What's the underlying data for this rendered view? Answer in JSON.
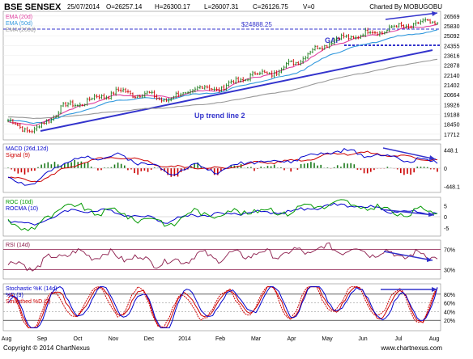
{
  "header": {
    "symbol": "BSE SENSEX",
    "date": "25/07/2014",
    "open": "O=26257.14",
    "high": "H=26300.17",
    "low": "L=26007.31",
    "close": "C=26126.75",
    "volume": "V=0",
    "credit": "Charted By MOBUGOBU"
  },
  "footer": {
    "copyright": "Copyright © 2014 ChartNexus",
    "url": "www.chartnexus.com"
  },
  "colors": {
    "price_up": "#1a7a1a",
    "price_down": "#cc0000",
    "ema20": "#e040a0",
    "ema50": "#3399dd",
    "ema200": "#999999",
    "trendline": "#3333cc",
    "macd": "#0000cc",
    "signal": "#cc0000",
    "roc": "#009900",
    "rocma": "#0000cc",
    "rsi": "#8b1a4a",
    "stoch_k": "#0000cc",
    "stoch_d": "#cc0000"
  },
  "chart_data": [
    {
      "type": "line",
      "panel": "price",
      "x_labels": [
        "Aug",
        "Sep",
        "Oct",
        "Nov",
        "Dec",
        "2014",
        "Feb",
        "Mar",
        "Apr",
        "May",
        "Jun",
        "Jul",
        "Aug"
      ],
      "series": [
        {
          "name": "BSE SENSEX",
          "values": [
            18600,
            17900,
            19700,
            20200,
            20900,
            20700,
            20300,
            21100,
            21200,
            22100,
            22400,
            23500,
            24700,
            25100,
            25500,
            25900,
            26127
          ]
        },
        {
          "name": "EMA (20d)",
          "values": [
            18700,
            18300,
            19300,
            20000,
            20600,
            20650,
            20450,
            20900,
            21050,
            21900,
            22300,
            23100,
            24300,
            24900,
            25300,
            25700,
            25900
          ]
        },
        {
          "name": "EMA (50d)",
          "values": [
            18800,
            18500,
            19000,
            19600,
            20200,
            20400,
            20350,
            20700,
            20900,
            21500,
            21900,
            22500,
            23700,
            24300,
            24800,
            25200,
            25450
          ]
        },
        {
          "name": "EMA (200d)",
          "values": [
            19000,
            18900,
            19000,
            19200,
            19400,
            19600,
            19700,
            19900,
            20100,
            20500,
            20800,
            21200,
            21800,
            22200,
            22600,
            23000,
            23300
          ]
        }
      ],
      "yticks": [
        "26569",
        "25830",
        "25092",
        "24355",
        "23616",
        "22878",
        "22140",
        "21402",
        "20664",
        "19926",
        "19188",
        "18450",
        "17712"
      ],
      "ylim": [
        17400,
        26800
      ],
      "annotations": [
        "$24888.25",
        "GAP",
        "Up trend line 2"
      ],
      "legend": [
        "EMA (20d)",
        "EMA (50d)",
        "EMA (200d)"
      ]
    },
    {
      "type": "line",
      "panel": "macd",
      "series": [
        {
          "name": "MACD (26d,12d)",
          "values": [
            -250,
            -400,
            120,
            280,
            300,
            150,
            -100,
            50,
            -80,
            200,
            150,
            250,
            420,
            380,
            300,
            200,
            180
          ]
        },
        {
          "name": "Signal (9)",
          "values": [
            -200,
            -350,
            -50,
            180,
            260,
            200,
            20,
            30,
            -20,
            120,
            160,
            200,
            350,
            380,
            340,
            260,
            210
          ]
        }
      ],
      "yticks": [
        "448.1",
        "0",
        "-448.1"
      ],
      "ylim": [
        -560,
        560
      ]
    },
    {
      "type": "line",
      "panel": "roc",
      "series": [
        {
          "name": "ROC (10d)",
          "values": [
            -2,
            -6,
            5,
            3,
            2,
            -1,
            -3,
            2,
            1,
            3,
            2,
            4,
            6,
            5,
            3,
            1,
            4
          ]
        },
        {
          "name": "ROCMA (10)",
          "values": [
            -1,
            -4,
            2,
            3,
            2,
            0,
            -2,
            1,
            1,
            2,
            2,
            3,
            5,
            5,
            3,
            2,
            2
          ]
        }
      ],
      "yticks": [
        "5",
        "0",
        "-5"
      ],
      "ylim": [
        -8,
        8
      ]
    },
    {
      "type": "line",
      "panel": "rsi",
      "series": [
        {
          "name": "RSI (14d)",
          "values": [
            42,
            35,
            62,
            60,
            58,
            50,
            42,
            58,
            55,
            62,
            60,
            66,
            72,
            68,
            62,
            58,
            60
          ]
        }
      ],
      "yticks": [
        "70%",
        "30%"
      ],
      "ylim": [
        15,
        85
      ]
    },
    {
      "type": "line",
      "panel": "stochastic",
      "series": [
        {
          "name": "Stochastic %K (14d)",
          "values": [
            30,
            15,
            80,
            60,
            85,
            40,
            20,
            75,
            50,
            85,
            60,
            80,
            88,
            70,
            55,
            40,
            85
          ]
        },
        {
          "name": "%D (3)",
          "values": [
            35,
            20,
            70,
            65,
            80,
            50,
            25,
            65,
            55,
            80,
            65,
            75,
            85,
            75,
            60,
            45,
            75
          ]
        },
        {
          "name": "Smoothed %D (3)",
          "values": [
            38,
            25,
            60,
            68,
            75,
            58,
            30,
            55,
            58,
            75,
            68,
            72,
            82,
            78,
            65,
            50,
            65
          ]
        }
      ],
      "yticks": [
        "80%",
        "60%",
        "40%",
        "20%"
      ],
      "ylim": [
        0,
        100
      ]
    }
  ]
}
